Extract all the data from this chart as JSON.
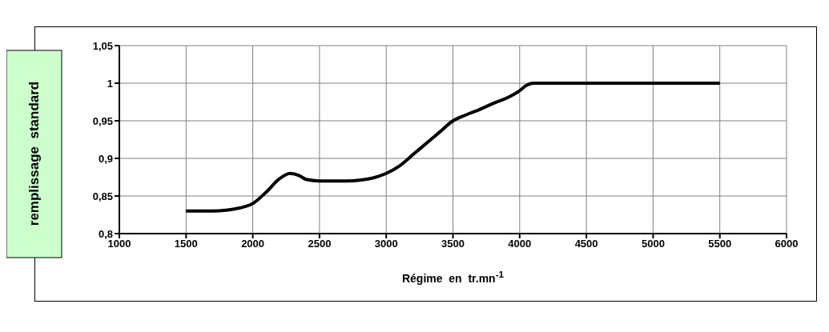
{
  "chart_data": {
    "type": "line",
    "ylabel": "remplissage  standard",
    "xlabel": "Régime  en  tr.mn$^{-1}$",
    "x": [
      1500,
      1600,
      1700,
      1800,
      1900,
      2000,
      2100,
      2200,
      2280,
      2350,
      2400,
      2500,
      2600,
      2700,
      2800,
      2900,
      3000,
      3100,
      3200,
      3300,
      3400,
      3500,
      3600,
      3700,
      3800,
      3900,
      4000,
      4050,
      4100,
      4500,
      5000,
      5500
    ],
    "series": [
      {
        "color": "#000000",
        "values": [
          0.83,
          0.83,
          0.83,
          0.831,
          0.834,
          0.84,
          0.855,
          0.873,
          0.88,
          0.877,
          0.872,
          0.87,
          0.87,
          0.87,
          0.871,
          0.874,
          0.88,
          0.89,
          0.905,
          0.92,
          0.935,
          0.95,
          0.958,
          0.965,
          0.973,
          0.98,
          0.99,
          0.997,
          1.0,
          1.0,
          1.0,
          1.0
        ]
      }
    ],
    "xlim": [
      1000,
      6000
    ],
    "xticks": [
      1000,
      1500,
      2000,
      2500,
      3000,
      3500,
      4000,
      4500,
      5000,
      5500,
      6000
    ],
    "ylim": [
      0.8,
      1.05
    ],
    "yticks": [
      {
        "value": 0.8,
        "label": "0,8"
      },
      {
        "value": 0.85,
        "label": "0,85"
      },
      {
        "value": 0.9,
        "label": "0,9"
      },
      {
        "value": 0.95,
        "label": "0,95"
      },
      1,
      {
        "value": 1.05,
        "label": "1,05"
      }
    ],
    "grid": true,
    "legend": false,
    "marker": "none",
    "line_style": "solid"
  }
}
